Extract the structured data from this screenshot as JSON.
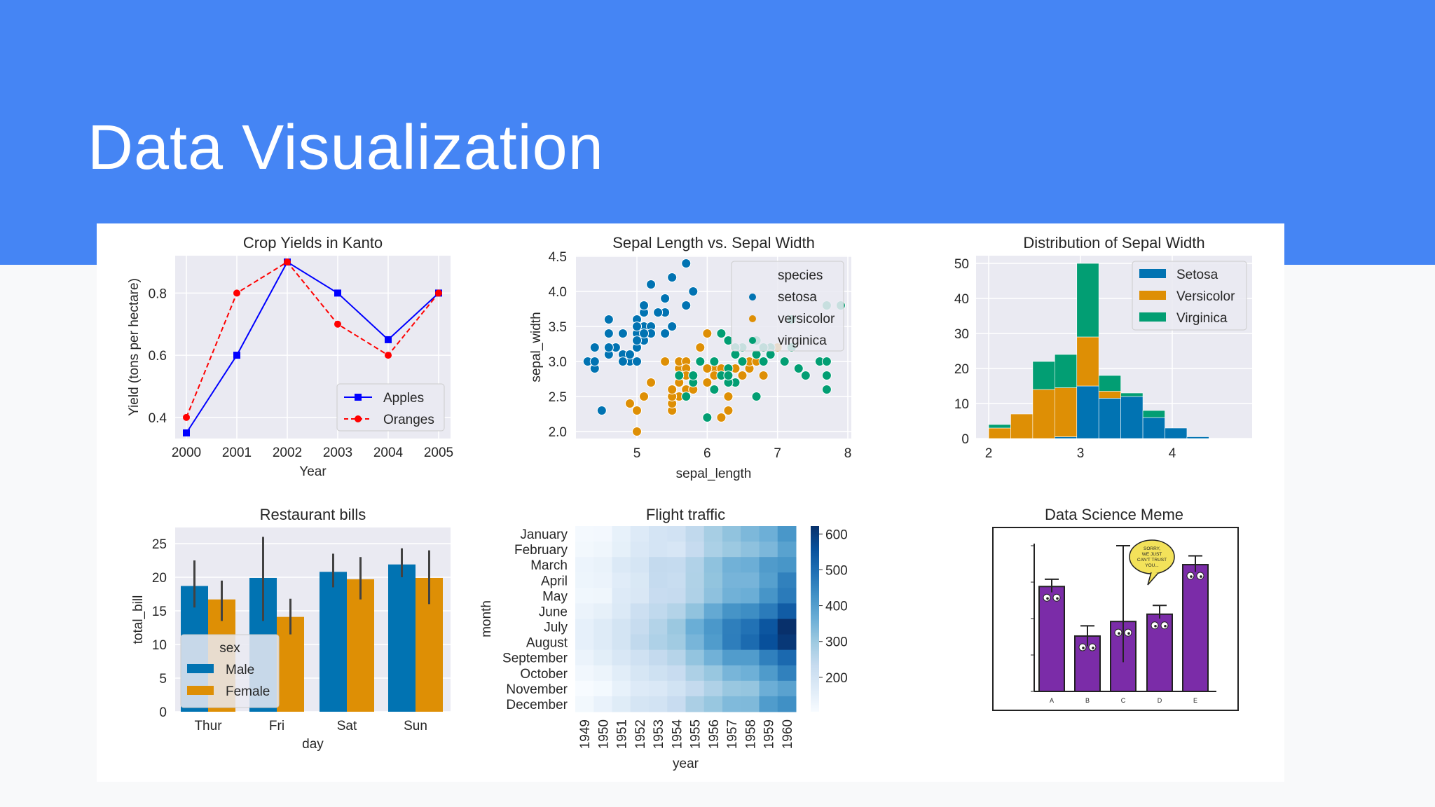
{
  "slide": {
    "title": "Data Visualization"
  },
  "colors": {
    "header": "#4585f4",
    "panel_bg": "#eaeaf2",
    "blue": "#0173b2",
    "orange": "#de8f05",
    "green": "#029e73",
    "seq_blue": "#08306b",
    "apples": "#0000ff",
    "oranges": "#ff0000",
    "meme_purple": "#7b2ca8"
  },
  "chart_data": [
    {
      "type": "line",
      "title": "Crop Yields in Kanto",
      "xlabel": "Year",
      "ylabel": "Yield (tons per hectare)",
      "x": [
        2000,
        2001,
        2002,
        2003,
        2004,
        2005
      ],
      "ylim": [
        0.35,
        0.9
      ],
      "yticks": [
        0.4,
        0.6,
        0.8
      ],
      "legend_loc": "lower right",
      "series": [
        {
          "name": "Apples",
          "values": [
            0.35,
            0.6,
            0.9,
            0.8,
            0.65,
            0.8
          ],
          "style": "solid",
          "marker": "square"
        },
        {
          "name": "Oranges",
          "values": [
            0.4,
            0.8,
            0.9,
            0.7,
            0.6,
            0.8
          ],
          "style": "dashed",
          "marker": "circle"
        }
      ]
    },
    {
      "type": "scatter",
      "title": "Sepal Length vs. Sepal Width",
      "xlabel": "sepal_length",
      "ylabel": "sepal_width",
      "xlim": [
        4.3,
        8.0
      ],
      "ylim": [
        2.0,
        4.4
      ],
      "xticks": [
        5,
        6,
        7,
        8
      ],
      "yticks": [
        "2.0",
        "2.5",
        "3.0",
        "3.5",
        "4.0",
        "4.5"
      ],
      "legend_title": "species",
      "series": [
        {
          "name": "setosa",
          "points": [
            [
              5.1,
              3.5
            ],
            [
              4.9,
              3.0
            ],
            [
              4.7,
              3.2
            ],
            [
              4.6,
              3.1
            ],
            [
              5.0,
              3.6
            ],
            [
              5.4,
              3.9
            ],
            [
              4.6,
              3.4
            ],
            [
              5.0,
              3.4
            ],
            [
              4.4,
              2.9
            ],
            [
              4.9,
              3.1
            ],
            [
              5.4,
              3.7
            ],
            [
              4.8,
              3.4
            ],
            [
              4.8,
              3.0
            ],
            [
              4.3,
              3.0
            ],
            [
              5.8,
              4.0
            ],
            [
              5.7,
              4.4
            ],
            [
              5.4,
              3.9
            ],
            [
              5.1,
              3.5
            ],
            [
              5.7,
              3.8
            ],
            [
              5.1,
              3.8
            ],
            [
              5.4,
              3.4
            ],
            [
              5.1,
              3.7
            ],
            [
              4.6,
              3.6
            ],
            [
              5.1,
              3.3
            ],
            [
              4.8,
              3.4
            ],
            [
              5.0,
              3.0
            ],
            [
              5.0,
              3.4
            ],
            [
              5.2,
              3.5
            ],
            [
              5.2,
              3.4
            ],
            [
              4.7,
              3.2
            ],
            [
              4.8,
              3.1
            ],
            [
              5.4,
              3.4
            ],
            [
              5.2,
              4.1
            ],
            [
              5.5,
              4.2
            ],
            [
              4.9,
              3.1
            ],
            [
              5.0,
              3.2
            ],
            [
              5.5,
              3.5
            ],
            [
              4.4,
              3.0
            ],
            [
              5.1,
              3.4
            ],
            [
              5.0,
              3.5
            ],
            [
              4.5,
              2.3
            ],
            [
              4.4,
              3.2
            ],
            [
              5.0,
              3.5
            ],
            [
              5.1,
              3.8
            ],
            [
              4.8,
              3.0
            ],
            [
              5.1,
              3.8
            ],
            [
              4.6,
              3.2
            ],
            [
              5.3,
              3.7
            ],
            [
              5.0,
              3.3
            ]
          ]
        },
        {
          "name": "versicolor",
          "points": [
            [
              7.0,
              3.2
            ],
            [
              6.4,
              3.2
            ],
            [
              6.9,
              3.1
            ],
            [
              5.5,
              2.3
            ],
            [
              6.5,
              2.8
            ],
            [
              5.7,
              2.8
            ],
            [
              6.3,
              3.3
            ],
            [
              4.9,
              2.4
            ],
            [
              6.6,
              2.9
            ],
            [
              5.2,
              2.7
            ],
            [
              5.0,
              2.0
            ],
            [
              5.9,
              3.0
            ],
            [
              6.0,
              2.2
            ],
            [
              6.1,
              2.9
            ],
            [
              5.6,
              2.9
            ],
            [
              6.7,
              3.1
            ],
            [
              5.6,
              3.0
            ],
            [
              5.8,
              2.7
            ],
            [
              6.2,
              2.2
            ],
            [
              5.6,
              2.5
            ],
            [
              5.9,
              3.2
            ],
            [
              6.1,
              2.8
            ],
            [
              6.3,
              2.5
            ],
            [
              6.4,
              2.9
            ],
            [
              6.6,
              3.0
            ],
            [
              6.8,
              2.8
            ],
            [
              6.7,
              3.0
            ],
            [
              6.0,
              2.9
            ],
            [
              5.7,
              2.6
            ],
            [
              5.5,
              2.4
            ],
            [
              5.8,
              2.7
            ],
            [
              6.0,
              2.7
            ],
            [
              5.4,
              3.0
            ],
            [
              6.0,
              3.4
            ],
            [
              6.7,
              3.1
            ],
            [
              6.3,
              2.3
            ],
            [
              5.6,
              3.0
            ],
            [
              5.5,
              2.5
            ],
            [
              5.5,
              2.6
            ],
            [
              6.1,
              3.0
            ],
            [
              5.8,
              2.6
            ],
            [
              5.0,
              2.3
            ],
            [
              5.6,
              2.7
            ],
            [
              5.7,
              3.0
            ],
            [
              5.7,
              2.9
            ],
            [
              6.2,
              2.9
            ],
            [
              5.1,
              2.5
            ],
            [
              5.7,
              2.8
            ]
          ]
        },
        {
          "name": "virginica",
          "points": [
            [
              6.3,
              3.3
            ],
            [
              5.8,
              2.7
            ],
            [
              7.1,
              3.0
            ],
            [
              6.3,
              2.9
            ],
            [
              6.5,
              3.0
            ],
            [
              7.6,
              3.0
            ],
            [
              7.3,
              2.9
            ],
            [
              6.7,
              2.5
            ],
            [
              7.2,
              3.6
            ],
            [
              6.5,
              3.2
            ],
            [
              6.4,
              2.7
            ],
            [
              6.8,
              3.0
            ],
            [
              5.7,
              2.5
            ],
            [
              5.8,
              2.8
            ],
            [
              6.4,
              3.2
            ],
            [
              7.7,
              3.8
            ],
            [
              7.7,
              2.6
            ],
            [
              6.0,
              2.2
            ],
            [
              6.9,
              3.2
            ],
            [
              5.6,
              2.8
            ],
            [
              7.7,
              2.8
            ],
            [
              6.3,
              2.7
            ],
            [
              6.7,
              3.3
            ],
            [
              7.2,
              3.2
            ],
            [
              6.2,
              2.8
            ],
            [
              6.1,
              3.0
            ],
            [
              7.4,
              2.8
            ],
            [
              7.9,
              3.8
            ],
            [
              6.3,
              2.8
            ],
            [
              6.1,
              2.6
            ],
            [
              7.7,
              3.0
            ],
            [
              6.4,
              3.1
            ],
            [
              6.9,
              3.1
            ],
            [
              6.7,
              3.1
            ],
            [
              6.8,
              3.2
            ],
            [
              6.2,
              3.4
            ],
            [
              5.9,
              3.0
            ]
          ]
        }
      ]
    },
    {
      "type": "bar",
      "title": "Distribution of Sepal Width",
      "stacked": true,
      "bin_edges": [
        2.0,
        2.24,
        2.48,
        2.72,
        2.96,
        3.2,
        3.44,
        3.68,
        3.92,
        4.16,
        4.4
      ],
      "xticks": [
        2,
        3,
        4
      ],
      "ylim": [
        0,
        50
      ],
      "yticks": [
        0,
        10,
        20,
        30,
        40,
        50
      ],
      "legend_loc": "upper right",
      "series": [
        {
          "name": "Setosa",
          "values": [
            0,
            0,
            0,
            0.5,
            15,
            11.5,
            12,
            6,
            3,
            0.5
          ]
        },
        {
          "name": "Versicolor",
          "values": [
            3,
            7,
            14,
            14,
            14,
            2,
            0,
            0,
            0,
            0
          ]
        },
        {
          "name": "Virginica",
          "values": [
            1,
            0,
            8,
            9.5,
            21,
            4.5,
            1,
            2,
            0,
            0
          ]
        }
      ]
    },
    {
      "type": "bar",
      "title": "Restaurant bills",
      "xlabel": "day",
      "ylabel": "total_bill",
      "categories": [
        "Thur",
        "Fri",
        "Sat",
        "Sun"
      ],
      "ylim": [
        0,
        26
      ],
      "yticks": [
        0,
        5,
        10,
        15,
        20,
        25
      ],
      "legend_title": "sex",
      "legend_loc": "lower left",
      "series": [
        {
          "name": "Male",
          "values": [
            18.7,
            19.9,
            20.8,
            21.9
          ],
          "ci": [
            [
              15.5,
              22.5
            ],
            [
              13.5,
              26.0
            ],
            [
              18.5,
              23.5
            ],
            [
              20.0,
              24.3
            ]
          ]
        },
        {
          "name": "Female",
          "values": [
            16.7,
            14.1,
            19.7,
            19.9
          ],
          "ci": [
            [
              13.5,
              19.5
            ],
            [
              11.5,
              16.8
            ],
            [
              16.7,
              23.0
            ],
            [
              16.0,
              24.0
            ]
          ]
        }
      ]
    },
    {
      "type": "heatmap",
      "title": "Flight traffic",
      "xlabel": "year",
      "ylabel": "month",
      "x": [
        "1949",
        "1950",
        "1951",
        "1952",
        "1953",
        "1954",
        "1955",
        "1956",
        "1957",
        "1958",
        "1959",
        "1960"
      ],
      "y": [
        "January",
        "February",
        "March",
        "April",
        "May",
        "June",
        "July",
        "August",
        "September",
        "October",
        "November",
        "December"
      ],
      "colorbar_ticks": [
        200,
        300,
        400,
        500,
        600
      ],
      "vmin": 104,
      "vmax": 622,
      "values": [
        [
          112,
          115,
          145,
          171,
          196,
          204,
          242,
          284,
          315,
          340,
          360,
          417
        ],
        [
          118,
          126,
          150,
          180,
          196,
          188,
          233,
          277,
          301,
          318,
          342,
          391
        ],
        [
          132,
          141,
          178,
          193,
          236,
          235,
          267,
          317,
          356,
          362,
          406,
          419
        ],
        [
          129,
          135,
          163,
          181,
          235,
          227,
          269,
          313,
          348,
          348,
          396,
          461
        ],
        [
          121,
          125,
          172,
          183,
          229,
          234,
          270,
          318,
          355,
          363,
          420,
          472
        ],
        [
          135,
          149,
          178,
          218,
          243,
          264,
          315,
          374,
          422,
          435,
          472,
          535
        ],
        [
          148,
          170,
          199,
          230,
          264,
          302,
          364,
          413,
          465,
          491,
          548,
          622
        ],
        [
          148,
          170,
          199,
          242,
          272,
          293,
          347,
          405,
          467,
          505,
          559,
          606
        ],
        [
          136,
          158,
          184,
          209,
          237,
          259,
          312,
          355,
          404,
          404,
          463,
          508
        ],
        [
          119,
          133,
          162,
          191,
          211,
          229,
          274,
          306,
          347,
          359,
          407,
          461
        ],
        [
          104,
          114,
          146,
          172,
          180,
          203,
          237,
          271,
          305,
          310,
          362,
          390
        ],
        [
          118,
          140,
          166,
          194,
          201,
          229,
          278,
          306,
          336,
          337,
          405,
          432
        ]
      ]
    }
  ],
  "meme": {
    "title": "Data Science Meme",
    "bar_labels": [
      "A",
      "B",
      "C",
      "D",
      "E"
    ],
    "bar_values": [
      0.72,
      0.38,
      0.48,
      0.53,
      0.87
    ],
    "bubble_text": "SORRY, WE JUST CAN'T TRUST YOU..."
  }
}
